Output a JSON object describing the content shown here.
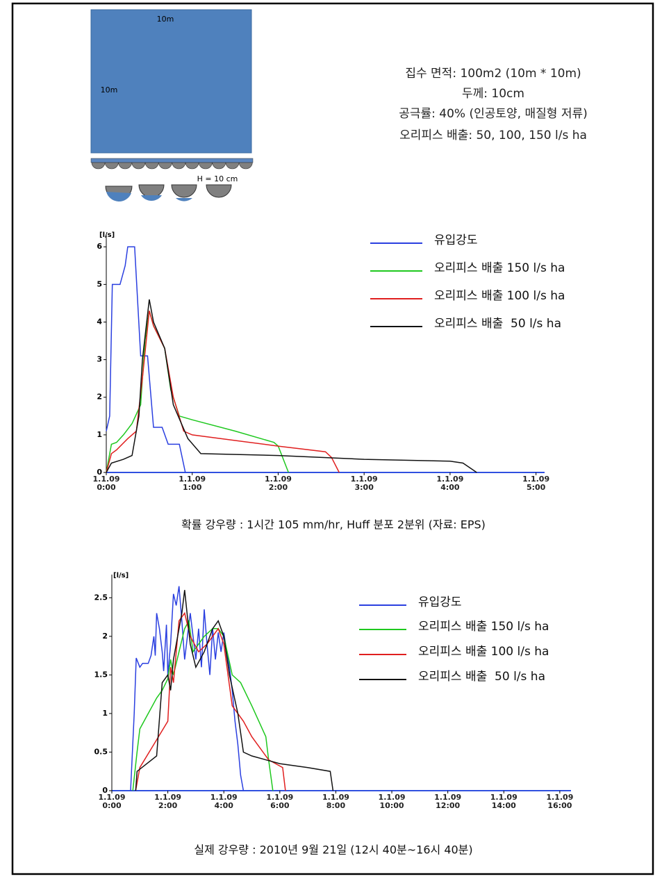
{
  "diagram": {
    "top_label": "10m",
    "side_label": "10m",
    "h_label": "H = 10 cm"
  },
  "info": [
    "집수 면적: 100m2 (10m * 10m)",
    "두께: 10cm",
    "공극률: 40% (인공토양, 매질형 저류)",
    "오리피스 배출: 50, 100, 150 l/s ha"
  ],
  "chart_data": [
    {
      "type": "line",
      "ylabel": "[l/s]",
      "caption": "확률 강우량 : 1시간 105 mm/hr,  Huff 분포 2분위 (자료: EPS)",
      "xlim": [
        0,
        5.1
      ],
      "ylim": [
        0,
        6.3
      ],
      "xticks": [
        {
          "value": 0,
          "label": "1.1.09\n0:00"
        },
        {
          "value": 1,
          "label": "1.1.09\n1:00"
        },
        {
          "value": 2,
          "label": "1.1.09\n2:00"
        },
        {
          "value": 3,
          "label": "1.1.09\n3:00"
        },
        {
          "value": 4,
          "label": "1.1.09\n4:00"
        },
        {
          "value": 5,
          "label": "1.1.09\n5:00"
        }
      ],
      "yticks": [
        0,
        1,
        2,
        3,
        4,
        5,
        6
      ],
      "series": [
        {
          "name": "유입강도",
          "color": "#2a3fe0",
          "x": [
            0,
            0.04,
            0.07,
            0.16,
            0.22,
            0.25,
            0.33,
            0.4,
            0.48,
            0.55,
            0.65,
            0.72,
            0.85,
            0.92
          ],
          "values": [
            1.1,
            1.5,
            5.0,
            5.0,
            5.5,
            6.0,
            6.0,
            3.1,
            3.1,
            1.2,
            1.2,
            0.75,
            0.75,
            0
          ]
        },
        {
          "name": "오리피스 배출 150 l/s ha",
          "color": "#1ec81e",
          "x": [
            0,
            0.06,
            0.12,
            0.2,
            0.3,
            0.4,
            0.45,
            0.5,
            0.55,
            0.68,
            0.75,
            0.85,
            1.0,
            1.5,
            1.95,
            2.0,
            2.12
          ],
          "values": [
            0,
            0.75,
            0.8,
            1.0,
            1.3,
            1.8,
            3.5,
            4.3,
            3.9,
            3.3,
            2.2,
            1.5,
            1.4,
            1.1,
            0.8,
            0.7,
            0
          ]
        },
        {
          "name": "오리피스 배출 100 l/s ha",
          "color": "#e01e1e",
          "x": [
            0,
            0.06,
            0.12,
            0.25,
            0.35,
            0.42,
            0.5,
            0.55,
            0.68,
            0.78,
            0.9,
            1.0,
            2.0,
            2.55,
            2.62,
            2.71
          ],
          "values": [
            0,
            0.5,
            0.6,
            0.9,
            1.1,
            2.5,
            4.3,
            3.9,
            3.3,
            2.0,
            1.1,
            1.0,
            0.7,
            0.55,
            0.4,
            0
          ]
        },
        {
          "name": "오리피스 배출  50 l/s ha",
          "color": "#111111",
          "x": [
            0,
            0.06,
            0.2,
            0.3,
            0.38,
            0.42,
            0.5,
            0.55,
            0.68,
            0.78,
            0.95,
            1.1,
            2.0,
            3.0,
            4.0,
            4.15,
            4.31
          ],
          "values": [
            0,
            0.25,
            0.35,
            0.45,
            1.5,
            3.0,
            4.6,
            4.0,
            3.3,
            1.8,
            0.9,
            0.5,
            0.45,
            0.35,
            0.3,
            0.25,
            0
          ]
        }
      ]
    },
    {
      "type": "line",
      "ylabel": "[l/s]",
      "caption": "실제 강우량 : 2010년 9월 21일 (12시 40분~16시 40분)",
      "xlim": [
        0,
        16.4
      ],
      "ylim": [
        0,
        2.8
      ],
      "xticks": [
        {
          "value": 0,
          "label": "1.1.09\n0:00"
        },
        {
          "value": 2,
          "label": "1.1.09\n2:00"
        },
        {
          "value": 4,
          "label": "1.1.09\n4:00"
        },
        {
          "value": 6,
          "label": "1.1.09\n6:00"
        },
        {
          "value": 8,
          "label": "1.1.09\n8:00"
        },
        {
          "value": 10,
          "label": "1.1.09\n10:00"
        },
        {
          "value": 12,
          "label": "1.1.09\n12:00"
        },
        {
          "value": 14,
          "label": "1.1.09\n14:00"
        },
        {
          "value": 16,
          "label": "1.1.09\n16:00"
        }
      ],
      "yticks": [
        0,
        0.5,
        1,
        1.5,
        2,
        2.5
      ],
      "series": [
        {
          "name": "유입강도",
          "color": "#2a3fe0",
          "x": [
            0.67,
            0.8,
            0.87,
            1.0,
            1.1,
            1.3,
            1.4,
            1.5,
            1.55,
            1.6,
            1.7,
            1.8,
            1.85,
            1.95,
            2.0,
            2.1,
            2.2,
            2.3,
            2.4,
            2.5,
            2.6,
            2.7,
            2.8,
            2.9,
            3.0,
            3.1,
            3.2,
            3.3,
            3.4,
            3.5,
            3.6,
            3.7,
            3.8,
            3.9,
            4.0,
            4.1,
            4.2,
            4.3,
            4.4,
            4.5,
            4.6,
            4.7
          ],
          "values": [
            0,
            1.0,
            1.72,
            1.6,
            1.65,
            1.65,
            1.75,
            2.0,
            1.75,
            2.3,
            2.1,
            1.8,
            1.55,
            2.15,
            1.5,
            1.9,
            2.55,
            2.4,
            2.65,
            2.2,
            1.7,
            2.0,
            2.3,
            2.0,
            1.7,
            2.1,
            1.6,
            2.35,
            1.9,
            1.5,
            2.1,
            1.7,
            2.05,
            1.8,
            2.05,
            1.8,
            1.6,
            1.3,
            0.9,
            0.6,
            0.2,
            0
          ]
        },
        {
          "name": "오리피스 배출 150 l/s ha",
          "color": "#1ec81e",
          "x": [
            0.75,
            0.9,
            1.0,
            1.3,
            1.6,
            1.8,
            2.0,
            2.1,
            2.2,
            2.4,
            2.6,
            2.75,
            2.9,
            3.1,
            3.3,
            3.6,
            3.8,
            4.0,
            4.3,
            4.6,
            5.0,
            5.5,
            5.6,
            5.75
          ],
          "values": [
            0,
            0.5,
            0.8,
            1.0,
            1.2,
            1.3,
            1.45,
            1.7,
            1.5,
            1.8,
            2.1,
            2.2,
            1.8,
            1.9,
            2.0,
            2.1,
            2.1,
            2.0,
            1.5,
            1.4,
            1.1,
            0.7,
            0.4,
            0
          ]
        },
        {
          "name": "오리피스 배출 100 l/s ha",
          "color": "#e01e1e",
          "x": [
            0.85,
            1.0,
            1.5,
            2.0,
            2.1,
            2.2,
            2.4,
            2.6,
            2.8,
            3.1,
            3.4,
            3.8,
            4.0,
            4.3,
            4.7,
            5.0,
            5.6,
            6.1,
            6.2
          ],
          "values": [
            0,
            0.3,
            0.6,
            0.9,
            1.6,
            1.4,
            2.2,
            2.3,
            2.0,
            1.8,
            1.9,
            2.1,
            1.9,
            1.1,
            0.9,
            0.7,
            0.4,
            0.3,
            0
          ]
        },
        {
          "name": "오리피스 배출  50 l/s ha",
          "color": "#111111",
          "x": [
            0.85,
            0.9,
            1.6,
            1.8,
            2.0,
            2.1,
            2.2,
            2.5,
            2.6,
            2.8,
            3.0,
            3.3,
            3.6,
            3.8,
            4.0,
            4.2,
            4.5,
            4.7,
            5.0,
            6.0,
            7.0,
            7.8,
            7.9
          ],
          "values": [
            0,
            0.25,
            0.45,
            1.4,
            1.5,
            1.3,
            1.7,
            2.3,
            2.6,
            1.9,
            1.6,
            1.8,
            2.1,
            2.2,
            2.0,
            1.5,
            1.0,
            0.5,
            0.45,
            0.35,
            0.3,
            0.25,
            0
          ]
        }
      ]
    }
  ]
}
